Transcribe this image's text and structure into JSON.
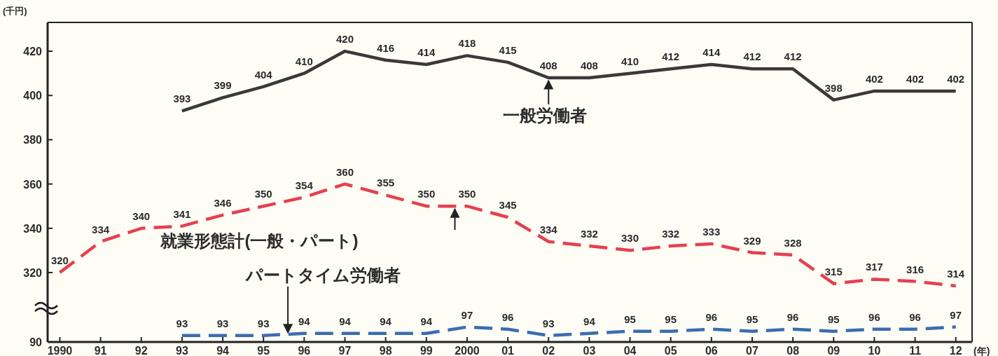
{
  "chart_data": [
    {
      "type": "line",
      "ylabel": "(千円)",
      "xlim": [
        1989.7,
        2012.4
      ],
      "ylim": [
        307,
        433
      ],
      "yticks": [
        320,
        340,
        360,
        380,
        400,
        420
      ],
      "tick_labels": "y",
      "data_labels": true,
      "series": [
        {
          "name": "一般労働者",
          "color": "#3c3838",
          "line_style": "solid",
          "x": [
            1993,
            1994,
            1995,
            1996,
            1997,
            1998,
            1999,
            2000,
            2001,
            2002,
            2003,
            2004,
            2005,
            2006,
            2007,
            2008,
            2009,
            2010,
            2011,
            2012
          ],
          "values": [
            393,
            399,
            404,
            410,
            420,
            416,
            414,
            418,
            415,
            408,
            408,
            410,
            412,
            414,
            412,
            412,
            398,
            402,
            402,
            402
          ]
        },
        {
          "name": "就業形態計(一般・パート)",
          "color": "#e5414e",
          "line_style": "dashed",
          "x": [
            1990,
            1991,
            1992,
            1993,
            1994,
            1995,
            1996,
            1997,
            1998,
            1999,
            2000,
            2001,
            2002,
            2003,
            2004,
            2005,
            2006,
            2007,
            2008,
            2009,
            2010,
            2011,
            2012
          ],
          "values": [
            320,
            334,
            340,
            341,
            346,
            350,
            354,
            360,
            355,
            350,
            350,
            345,
            334,
            332,
            330,
            332,
            333,
            329,
            328,
            315,
            317,
            316,
            314
          ]
        }
      ]
    },
    {
      "type": "line",
      "xlabel": "(年)",
      "xlim": [
        1989.7,
        2012.4
      ],
      "ylim": [
        90,
        109
      ],
      "data_labels": true,
      "xticks": [
        {
          "value": 1990,
          "label": "1990"
        },
        {
          "value": 1991,
          "label": "91"
        },
        {
          "value": 1992,
          "label": "92"
        },
        {
          "value": 1993,
          "label": "93"
        },
        {
          "value": 1994,
          "label": "94"
        },
        {
          "value": 1995,
          "label": "95"
        },
        {
          "value": 1996,
          "label": "96"
        },
        {
          "value": 1997,
          "label": "97"
        },
        {
          "value": 1998,
          "label": "98"
        },
        {
          "value": 1999,
          "label": "99"
        },
        {
          "value": 2000,
          "label": "2000"
        },
        {
          "value": 2001,
          "label": "01"
        },
        {
          "value": 2002,
          "label": "02"
        },
        {
          "value": 2003,
          "label": "03"
        },
        {
          "value": 2004,
          "label": "04"
        },
        {
          "value": 2005,
          "label": "05"
        },
        {
          "value": 2006,
          "label": "06"
        },
        {
          "value": 2007,
          "label": "07"
        },
        {
          "value": 2008,
          "label": "08"
        },
        {
          "value": 2009,
          "label": "09"
        },
        {
          "value": 2010,
          "label": "10"
        },
        {
          "value": 2011,
          "label": "11"
        },
        {
          "value": 2012,
          "label": "12"
        }
      ],
      "series": [
        {
          "name": "パートタイム労働者",
          "color": "#3a6db0",
          "line_style": "dashed",
          "x": [
            1993,
            1994,
            1995,
            1996,
            1997,
            1998,
            1999,
            2000,
            2001,
            2002,
            2003,
            2004,
            2005,
            2006,
            2007,
            2008,
            2009,
            2010,
            2011,
            2012
          ],
          "values": [
            93,
            93,
            93,
            94,
            94,
            94,
            94,
            97,
            96,
            93,
            94,
            95,
            95,
            96,
            95,
            96,
            95,
            96,
            96,
            97
          ]
        }
      ],
      "annotations": [
        "90"
      ]
    }
  ]
}
